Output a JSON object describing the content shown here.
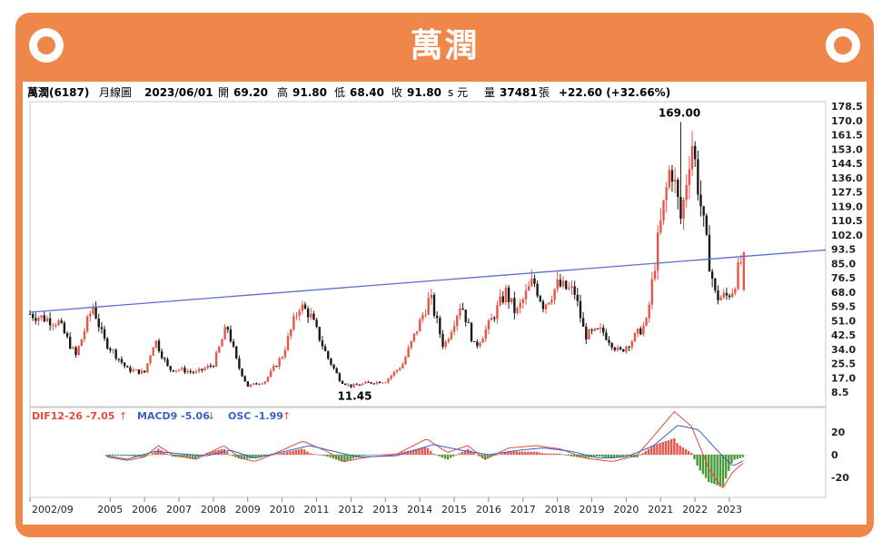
{
  "header": {
    "title": "萬潤"
  },
  "info_bar": {
    "stock": "萬潤(6187)",
    "period": "月線圖",
    "date": "2023/06/01",
    "open_label": "開",
    "open": "69.20",
    "high_label": "高",
    "high": "91.80",
    "low_label": "低",
    "low": "68.40",
    "close_label": "收",
    "close": "91.80",
    "close_suffix": "s 元",
    "volume_label": "量",
    "volume": "37481",
    "volume_unit": "張",
    "change": "+22.60 (+32.66%)"
  },
  "macd_legend": {
    "dif": "DIF12-26 -7.05",
    "macd": "MACD9 -5.06",
    "osc": "OSC -1.99"
  },
  "annotations": {
    "high_point": "169.00",
    "low_point": "11.45"
  },
  "colors": {
    "up": "#e8564a",
    "down": "#1a1a1a",
    "trendline": "#5b6fd1",
    "dif": "#e34a3a",
    "macd": "#3b5fc8",
    "osc_pos": "#e8564a",
    "osc_neg": "#4a9a3a",
    "frame": "#f0874a"
  },
  "chart_data": [
    {
      "type": "candlestick",
      "title": "萬潤(6187) 月線圖",
      "price_axis_ticks": [
        "178.5",
        "170.0",
        "161.5",
        "153.0",
        "144.5",
        "136.0",
        "127.5",
        "119.0",
        "110.5",
        "102.0",
        "93.5",
        "85.0",
        "76.5",
        "68.0",
        "59.5",
        "51.0",
        "42.5",
        "34.0",
        "25.5",
        "17.0",
        "8.5"
      ],
      "x_tick_labels": [
        "2002/09",
        "2005",
        "2006",
        "2007",
        "2008",
        "2009",
        "2010",
        "2011",
        "2012",
        "2013",
        "2014",
        "2015",
        "2016",
        "2017",
        "2018",
        "2019",
        "2020",
        "2021",
        "2022",
        "2023"
      ],
      "x_ticks_year": [
        2002.67,
        2005,
        2006,
        2007,
        2008,
        2009,
        2010,
        2011,
        2012,
        2013,
        2014,
        2015,
        2016,
        2017,
        2018,
        2019,
        2020,
        2021,
        2022,
        2023
      ],
      "xlim": [
        2002.67,
        2025.8
      ],
      "price_trend": [
        [
          2002.67,
          55
        ],
        [
          2003.5,
          50
        ],
        [
          2004.0,
          30
        ],
        [
          2004.5,
          60
        ],
        [
          2004.8,
          40
        ],
        [
          2005.5,
          22
        ],
        [
          2006.0,
          20
        ],
        [
          2006.3,
          40
        ],
        [
          2006.7,
          22
        ],
        [
          2007.0,
          22
        ],
        [
          2007.5,
          20
        ],
        [
          2008.0,
          25
        ],
        [
          2008.4,
          48
        ],
        [
          2008.7,
          25
        ],
        [
          2009.0,
          12
        ],
        [
          2009.5,
          15
        ],
        [
          2010.0,
          30
        ],
        [
          2010.5,
          60
        ],
        [
          2010.8,
          55
        ],
        [
          2011.3,
          30
        ],
        [
          2011.7,
          15
        ],
        [
          2012.0,
          12
        ],
        [
          2012.5,
          14
        ],
        [
          2013.0,
          15
        ],
        [
          2013.5,
          25
        ],
        [
          2014.0,
          50
        ],
        [
          2014.3,
          65
        ],
        [
          2014.7,
          35
        ],
        [
          2015.2,
          62
        ],
        [
          2015.6,
          35
        ],
        [
          2016.0,
          48
        ],
        [
          2016.5,
          68
        ],
        [
          2016.8,
          55
        ],
        [
          2017.3,
          75
        ],
        [
          2017.6,
          60
        ],
        [
          2018.0,
          72
        ],
        [
          2018.5,
          68
        ],
        [
          2018.8,
          42
        ],
        [
          2019.3,
          45
        ],
        [
          2019.8,
          32
        ],
        [
          2020.2,
          40
        ],
        [
          2020.6,
          50
        ],
        [
          2020.9,
          95
        ],
        [
          2021.3,
          145
        ],
        [
          2021.6,
          110
        ],
        [
          2021.9,
          160
        ],
        [
          2022.3,
          100
        ],
        [
          2022.6,
          65
        ],
        [
          2022.9,
          65
        ],
        [
          2023.1,
          70
        ],
        [
          2023.42,
          91.8
        ]
      ],
      "extreme_high": {
        "x": 2021.55,
        "value": 169.0
      },
      "extreme_low": {
        "x": 2011.95,
        "value": 11.45
      },
      "trendline": {
        "start": {
          "x": 2002.67,
          "value": 56
        },
        "end": {
          "x": 2025.8,
          "value": 93
        }
      },
      "last_candle": {
        "date": "2023/06/01",
        "open": 69.2,
        "high": 91.8,
        "low": 68.4,
        "close": 91.8,
        "volume": 37481,
        "change": 22.6,
        "change_pct": 32.66
      }
    },
    {
      "type": "macd",
      "series": [
        {
          "name": "DIF12-26",
          "last": -7.05
        },
        {
          "name": "MACD9",
          "last": -5.06
        },
        {
          "name": "OSC",
          "last": -1.99
        }
      ],
      "y_ticks": [
        20,
        0,
        -20
      ],
      "dif_trend": [
        [
          2004.9,
          -2
        ],
        [
          2005.5,
          -5
        ],
        [
          2006.0,
          -2
        ],
        [
          2006.4,
          8
        ],
        [
          2006.8,
          0
        ],
        [
          2007.5,
          -4
        ],
        [
          2008.3,
          8
        ],
        [
          2008.8,
          -3
        ],
        [
          2009.2,
          -6
        ],
        [
          2009.7,
          0
        ],
        [
          2010.6,
          12
        ],
        [
          2011.3,
          3
        ],
        [
          2011.8,
          -6
        ],
        [
          2012.5,
          -2
        ],
        [
          2013.3,
          0
        ],
        [
          2014.2,
          14
        ],
        [
          2014.8,
          2
        ],
        [
          2015.4,
          8
        ],
        [
          2015.9,
          -4
        ],
        [
          2016.6,
          6
        ],
        [
          2017.4,
          8
        ],
        [
          2018.1,
          5
        ],
        [
          2018.8,
          -3
        ],
        [
          2019.6,
          -6
        ],
        [
          2020.3,
          -1
        ],
        [
          2020.9,
          20
        ],
        [
          2021.4,
          38
        ],
        [
          2021.9,
          25
        ],
        [
          2022.4,
          -12
        ],
        [
          2022.8,
          -30
        ],
        [
          2023.1,
          -15
        ],
        [
          2023.42,
          -7.05
        ]
      ],
      "macd_trend": [
        [
          2004.9,
          -1
        ],
        [
          2005.5,
          -4
        ],
        [
          2006.3,
          3
        ],
        [
          2007.0,
          1
        ],
        [
          2007.8,
          -1
        ],
        [
          2008.5,
          4
        ],
        [
          2009.2,
          -3
        ],
        [
          2009.8,
          1
        ],
        [
          2010.8,
          8
        ],
        [
          2011.5,
          3
        ],
        [
          2012.2,
          -2
        ],
        [
          2013.3,
          -1
        ],
        [
          2014.4,
          9
        ],
        [
          2015.2,
          4
        ],
        [
          2016.0,
          0
        ],
        [
          2016.9,
          4
        ],
        [
          2017.6,
          6
        ],
        [
          2018.4,
          3
        ],
        [
          2019.2,
          -3
        ],
        [
          2020.0,
          -2
        ],
        [
          2020.8,
          8
        ],
        [
          2021.5,
          26
        ],
        [
          2022.1,
          22
        ],
        [
          2022.7,
          2
        ],
        [
          2023.1,
          -10
        ],
        [
          2023.42,
          -5.06
        ]
      ]
    }
  ]
}
